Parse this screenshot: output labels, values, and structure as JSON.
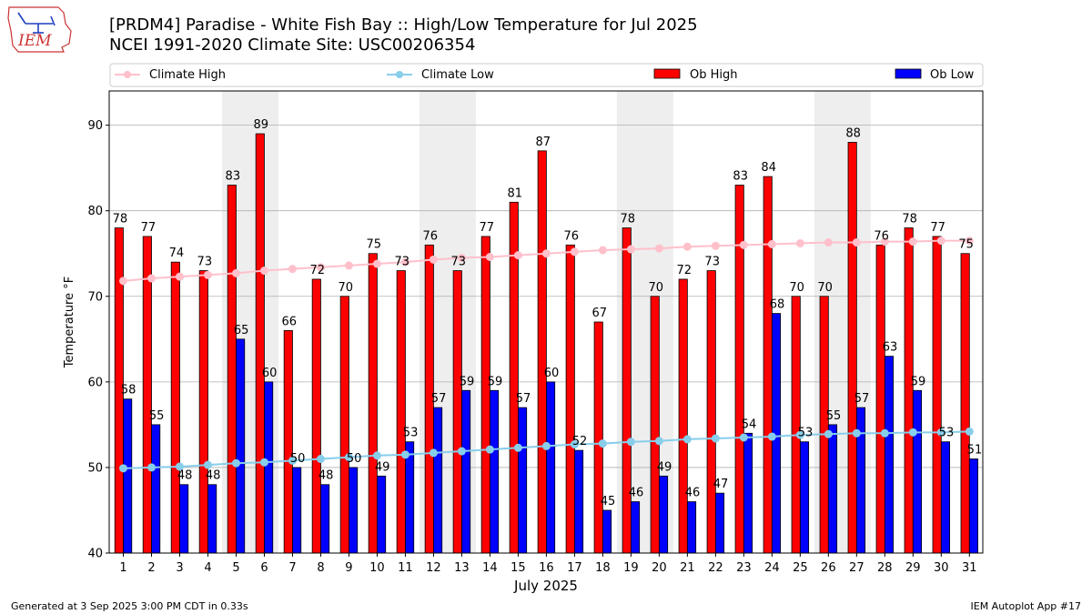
{
  "header": {
    "title_line1": "[PRDM4] Paradise - White Fish Bay :: High/Low Temperature for Jul 2025",
    "title_line2": "NCEI 1991-2020 Climate Site: USC00206354",
    "logo_text": "IEM"
  },
  "footer": {
    "generated": "Generated at 3 Sep 2025 3:00 PM CDT in 0.33s",
    "app": "IEM Autoplot App #17"
  },
  "colors": {
    "ob_high": "#ff0000",
    "ob_low": "#0000ff",
    "climate_high": "#ffc0cb",
    "climate_low": "#87ceeb",
    "weekend_shade": "#eeeeee",
    "grid": "#b0b0b0"
  },
  "chart_data": {
    "type": "bar",
    "xlabel": "July 2025",
    "ylabel": "Temperature °F",
    "ylim": [
      40,
      94
    ],
    "yticks": [
      40,
      50,
      60,
      70,
      80,
      90
    ],
    "grid": "horizontal",
    "legend_placement": "top",
    "categories": [
      "1",
      "2",
      "3",
      "4",
      "5",
      "6",
      "7",
      "8",
      "9",
      "10",
      "11",
      "12",
      "13",
      "14",
      "15",
      "16",
      "17",
      "18",
      "19",
      "20",
      "21",
      "22",
      "23",
      "24",
      "25",
      "26",
      "27",
      "28",
      "29",
      "30",
      "31"
    ],
    "shaded_days": [
      5,
      6,
      12,
      13,
      19,
      20,
      26,
      27
    ],
    "series": [
      {
        "name": "Climate High",
        "kind": "line",
        "values": [
          71.8,
          72.1,
          72.3,
          72.5,
          72.7,
          73.0,
          73.2,
          73.4,
          73.6,
          73.8,
          74.0,
          74.3,
          74.5,
          74.6,
          74.8,
          75.0,
          75.2,
          75.4,
          75.5,
          75.6,
          75.8,
          75.9,
          76.0,
          76.1,
          76.2,
          76.3,
          76.3,
          76.4,
          76.4,
          76.5,
          76.5
        ]
      },
      {
        "name": "Climate Low",
        "kind": "line",
        "values": [
          49.9,
          50.0,
          50.1,
          50.3,
          50.5,
          50.6,
          50.8,
          51.0,
          51.2,
          51.4,
          51.5,
          51.7,
          51.9,
          52.1,
          52.3,
          52.5,
          52.7,
          52.8,
          53.0,
          53.1,
          53.3,
          53.4,
          53.5,
          53.6,
          53.8,
          53.9,
          54.0,
          54.0,
          54.1,
          54.1,
          54.2
        ]
      },
      {
        "name": "Ob High",
        "kind": "bar",
        "values": [
          78,
          77,
          74,
          73,
          83,
          89,
          66,
          72,
          70,
          75,
          73,
          76,
          73,
          77,
          81,
          87,
          76,
          67,
          78,
          70,
          72,
          73,
          83,
          84,
          70,
          70,
          88,
          76,
          78,
          77,
          75
        ]
      },
      {
        "name": "Ob Low",
        "kind": "bar",
        "values": [
          58,
          55,
          48,
          48,
          65,
          60,
          50,
          48,
          50,
          49,
          53,
          57,
          59,
          59,
          57,
          60,
          52,
          45,
          46,
          49,
          46,
          47,
          54,
          68,
          53,
          55,
          57,
          63,
          59,
          53,
          51
        ]
      }
    ]
  }
}
